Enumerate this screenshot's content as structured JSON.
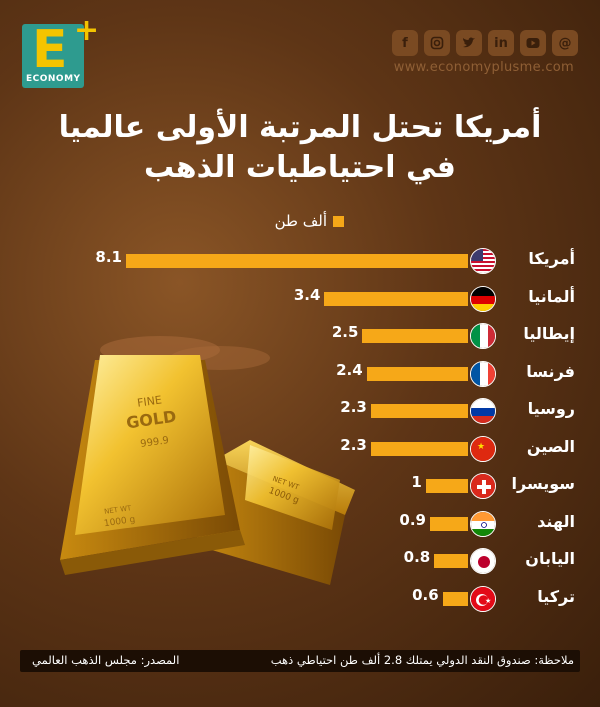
{
  "brand": {
    "logo_letter": "E",
    "logo_plus": "+",
    "logo_word": "ECONOMY",
    "url": "www.economyplusme.com"
  },
  "social_icons": [
    "facebook-icon",
    "instagram-icon",
    "twitter-icon",
    "linkedin-icon",
    "youtube-icon",
    "threads-icon"
  ],
  "title_line1": "أمريكا تحتل المرتبة الأولى عالميا",
  "title_line2": "في احتياطيات الذهب",
  "gold_bar_text": {
    "line1": "FINE",
    "line2": "GOLD",
    "purity": "999.9",
    "net_wt": "NET WT",
    "weight": "1000 g"
  },
  "chart_data": {
    "type": "bar",
    "orientation": "horizontal",
    "legend": "ألف طن",
    "bar_color": "#f6a818",
    "categories": [
      "أمريكا",
      "ألمانيا",
      "إيطاليا",
      "فرنسا",
      "روسيا",
      "الصين",
      "سويسرا",
      "الهند",
      "اليابان",
      "تركيا"
    ],
    "flags": [
      "us-flag-icon",
      "germany-flag-icon",
      "italy-flag-icon",
      "france-flag-icon",
      "russia-flag-icon",
      "china-flag-icon",
      "switzerland-flag-icon",
      "india-flag-icon",
      "japan-flag-icon",
      "turkey-flag-icon"
    ],
    "values": [
      8.1,
      3.4,
      2.5,
      2.4,
      2.3,
      2.3,
      1,
      0.9,
      0.8,
      0.6
    ],
    "value_labels": [
      "8.1",
      "3.4",
      "2.5",
      "2.4",
      "2.3",
      "2.3",
      "1",
      "0.9",
      "0.8",
      "0.6"
    ]
  },
  "footer": {
    "note": "ملاحظة: صندوق النقد الدولي يمتلك 2.8 ألف طن احتياطي ذهب",
    "source": "المصدر: مجلس الذهب العالمي"
  }
}
